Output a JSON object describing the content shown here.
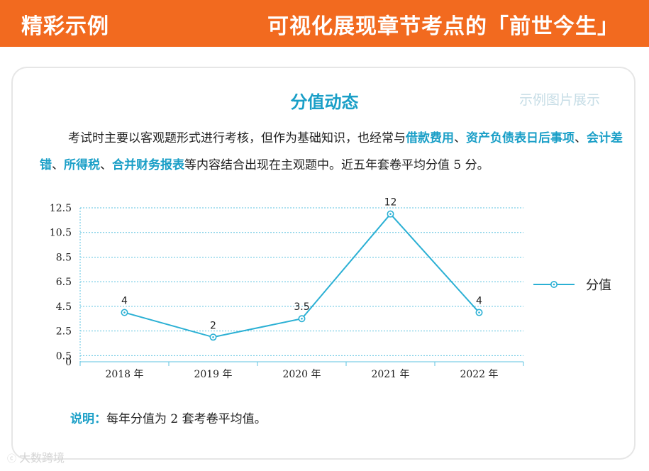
{
  "header": {
    "left_title": "精彩示例",
    "right_title": "可视化展现章节考点的「前世今生」"
  },
  "card": {
    "title": "分值动态",
    "sample_label": "示例图片展示",
    "paragraph": {
      "before": "考试时主要以客观题形式进行考核，但作为基础知识，也经常与",
      "term1": "借款费用",
      "sep1": "、",
      "term2": "资产负债表日后事项",
      "sep2": "、",
      "term3": "会计差错",
      "sep3": "、",
      "term4": "所得税",
      "sep4": "、",
      "term5": "合并财务报表",
      "after": "等内容结合出现在主观题中。近五年套卷平均分值 5 分。"
    },
    "note": {
      "label": "说明：",
      "text": "每年分值为 2 套考卷平均值。"
    }
  },
  "chart_data": {
    "type": "line",
    "categories": [
      "2018 年",
      "2019 年",
      "2020 年",
      "2021 年",
      "2022 年"
    ],
    "series": [
      {
        "name": "分值",
        "values": [
          4,
          2,
          3.5,
          12,
          4
        ],
        "labels": [
          "4",
          "2",
          "3.5",
          "12",
          "4"
        ],
        "color": "#2bb0d4"
      }
    ],
    "title": "",
    "xlabel": "",
    "ylabel": "",
    "ylim": [
      0,
      12.5
    ],
    "yticks": [
      0,
      0.5,
      2.5,
      4.5,
      6.5,
      8.5,
      10.5,
      12.5
    ],
    "ytick_labels": [
      "0",
      "0.5",
      "2.5",
      "4.5",
      "6.5",
      "8.5",
      "10.5",
      "12.5"
    ],
    "grid": true,
    "grid_style": "dotted",
    "legend": "right"
  },
  "watermark": {
    "icon": "wechat-icon",
    "text": "大数跨境"
  }
}
